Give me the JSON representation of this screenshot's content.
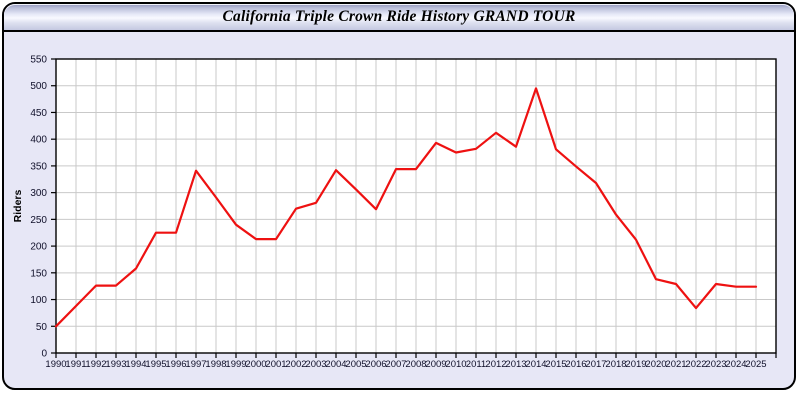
{
  "header": {
    "title": "California Triple Crown Ride History GRAND TOUR"
  },
  "colors": {
    "line": "#ee1111",
    "panel_background": "#e7e7f6",
    "plot_background": "#ffffff",
    "grid": "#c9c9c9",
    "axis": "#000000",
    "tick_label": "#10102a"
  },
  "chart_data": {
    "type": "line",
    "title": "California Triple Crown Ride History GRAND TOUR",
    "xlabel": "",
    "ylabel": "Riders",
    "x": [
      1990,
      1991,
      1992,
      1993,
      1994,
      1995,
      1996,
      1997,
      1998,
      1999,
      2000,
      2001,
      2002,
      2003,
      2004,
      2005,
      2006,
      2007,
      2008,
      2009,
      2010,
      2011,
      2012,
      2013,
      2014,
      2015,
      2016,
      2017,
      2018,
      2019,
      2020,
      2021,
      2022,
      2023,
      2024,
      2025
    ],
    "values": [
      50,
      88,
      126,
      126,
      158,
      225,
      225,
      341,
      291,
      240,
      213,
      213,
      270,
      281,
      342,
      306,
      269,
      344,
      344,
      393,
      375,
      382,
      412,
      386,
      495,
      381,
      349,
      318,
      259,
      212,
      138,
      129,
      84,
      129,
      124,
      124
    ],
    "ylim": [
      0,
      550
    ],
    "ytick_step": 50,
    "grid": true,
    "legend": "none",
    "line_color": "#ee1111"
  }
}
